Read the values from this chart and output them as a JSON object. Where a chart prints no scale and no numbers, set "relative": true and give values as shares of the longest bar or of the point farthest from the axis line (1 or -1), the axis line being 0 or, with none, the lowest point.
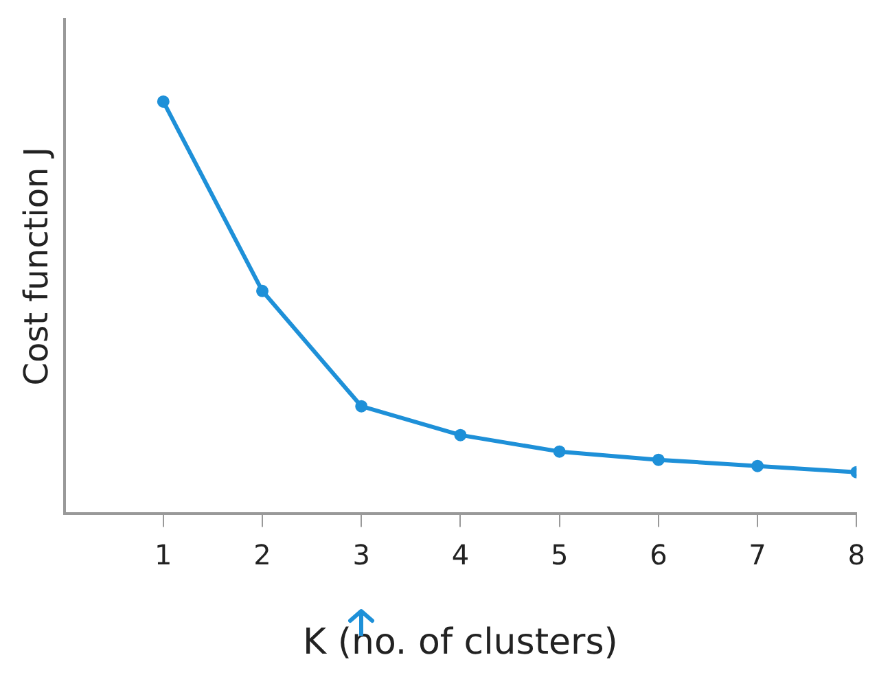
{
  "chart_data": {
    "type": "line",
    "xlabel": "K (no. of clusters)",
    "ylabel": "Cost function J",
    "relative": true,
    "x": [
      1,
      2,
      3,
      4,
      5,
      6,
      7,
      8
    ],
    "xlim": [
      0,
      8
    ],
    "xticks": [
      1,
      2,
      3,
      4,
      5,
      6,
      7,
      8
    ],
    "series": [
      {
        "color": "#1e90d8",
        "values": [
          1,
          0.54,
          0.26,
          0.19,
          0.15,
          0.13,
          0.115,
          0.1
        ]
      }
    ],
    "marker": "circle",
    "grid": false,
    "legend": false
  }
}
